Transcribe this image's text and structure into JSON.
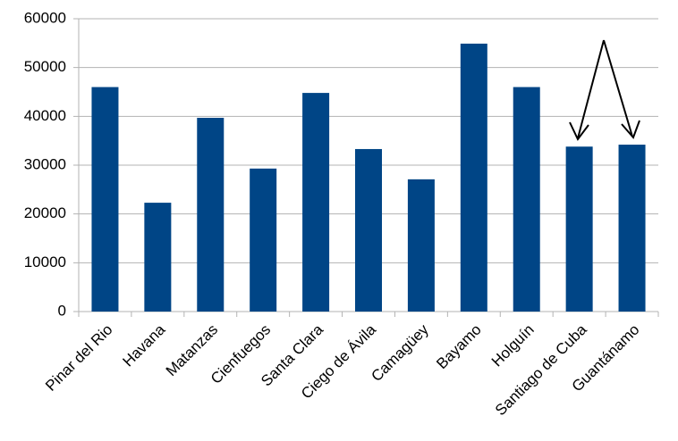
{
  "chart_data": {
    "type": "bar",
    "categories": [
      "Pinar del Rio",
      "Havana",
      "Matanzas",
      "Cienfuegos",
      "Santa Clara",
      "Ciego de Ávila",
      "Camagüey",
      "Bayamo",
      "Holguín",
      "Santiago de Cuba",
      "Guantánamo"
    ],
    "values": [
      46000,
      22300,
      39700,
      29300,
      44800,
      33300,
      27100,
      54900,
      46000,
      33800,
      34200
    ],
    "color": "#004586",
    "ylim": [
      0,
      60000
    ],
    "yticks": [
      0,
      10000,
      20000,
      30000,
      40000,
      50000,
      60000
    ],
    "grid": true
  }
}
